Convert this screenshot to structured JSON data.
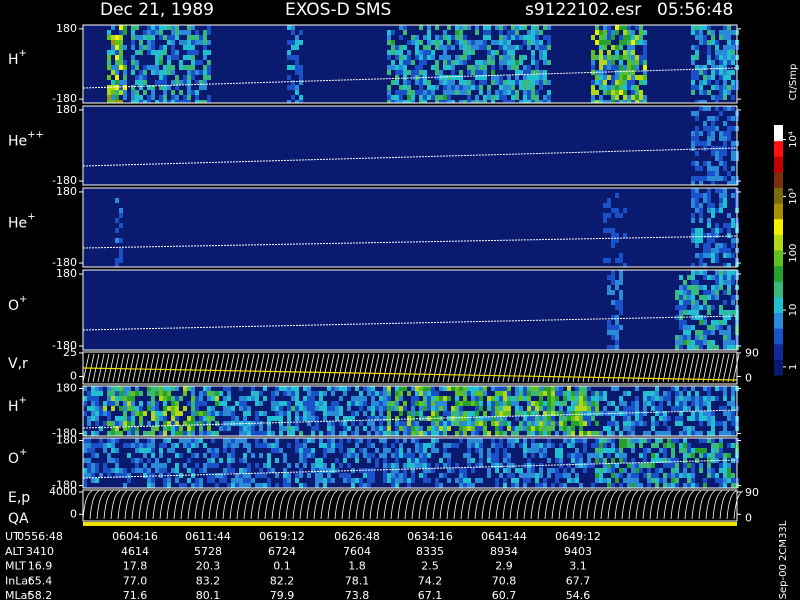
{
  "chart_data": {
    "type": "spectrogram",
    "date": "Dec 21, 1989",
    "title": "EXOS-D SMS",
    "file": "s9122102.esr",
    "time": "05:56:48",
    "panels": [
      {
        "label": "H",
        "sup": "+",
        "ylim": [
          -200,
          200
        ],
        "yticks": [
          180,
          -180
        ]
      },
      {
        "label": "He",
        "sup": "++",
        "ylim": [
          -200,
          200
        ],
        "yticks": [
          180,
          -180
        ]
      },
      {
        "label": "He",
        "sup": "+",
        "ylim": [
          -200,
          200
        ],
        "yticks": [
          180,
          -180
        ]
      },
      {
        "label": "O",
        "sup": "+",
        "ylim": [
          -200,
          200
        ],
        "yticks": [
          180,
          -180
        ]
      },
      {
        "label": "V,r",
        "ylim": [
          -8,
          26
        ],
        "yticks": [
          25,
          0
        ],
        "y2lim": [
          -20,
          95
        ],
        "y2ticks": [
          90,
          0
        ]
      },
      {
        "label": "H",
        "sup": "+",
        "ylim": [
          -200,
          200
        ],
        "yticks": [
          180,
          -180
        ]
      },
      {
        "label": "O",
        "sup": "+",
        "ylim": [
          -200,
          200
        ],
        "yticks": [
          180,
          -180
        ]
      },
      {
        "label": "E,p",
        "label2": "QA",
        "ylim": [
          -1200,
          4350
        ],
        "yticks": [
          4000,
          0
        ],
        "y2lim": [
          -8,
          100
        ],
        "y2ticks": [
          90,
          0
        ]
      }
    ],
    "colorbar": {
      "label": "Ct/Smp",
      "log": true,
      "ylim": [
        0.72,
        18000
      ],
      "yticks": [
        {
          "value": 10000,
          "label": "10⁴"
        },
        {
          "value": 1000,
          "label": "10³"
        },
        100,
        10,
        1
      ],
      "colors": [
        "#0a1a6e",
        "#10289a",
        "#1a50c8",
        "#2a8ad8",
        "#20c0d0",
        "#3ab87a",
        "#28a030",
        "#60c020",
        "#b0d818",
        "#f0f000",
        "#a89000",
        "#7a6a10",
        "#7a3010",
        "#c00000",
        "#ff1010",
        "#ffffff"
      ]
    },
    "table": {
      "rows": [
        [
          "UT",
          "0556:48",
          "0604:16",
          "0611:44",
          "0619:12",
          "0626:48",
          "0634:16",
          "0641:44",
          "0649:12"
        ],
        [
          "ALT",
          "3410",
          "4614",
          "5728",
          "6724",
          "7604",
          "8335",
          "8934",
          "9403"
        ],
        [
          "MLT",
          "16.9",
          "17.8",
          "20.3",
          "0.1",
          "1.8",
          "2.5",
          "2.9",
          "3.1"
        ],
        [
          "InLat",
          "65.4",
          "77.0",
          "83.2",
          "82.2",
          "78.1",
          "74.2",
          "70.8",
          "67.7"
        ],
        [
          "MLat",
          "58.2",
          "71.6",
          "80.1",
          "79.9",
          "73.8",
          "67.1",
          "60.7",
          "54.6"
        ]
      ]
    },
    "note": "Sep-00 2CM33L"
  }
}
